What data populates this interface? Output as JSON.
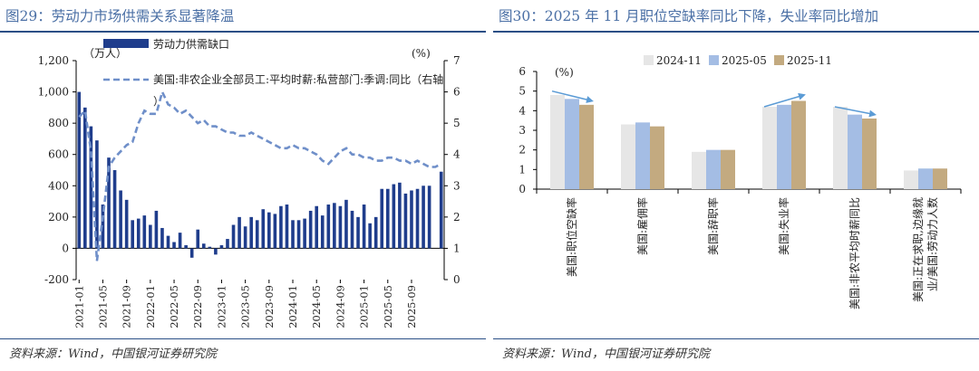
{
  "left": {
    "title": "图29：劳动力市场供需关系显著降温",
    "source": "资料来源：Wind，中国银河证券研究院",
    "colors": {
      "bar": "#1f3d8c",
      "line": "#6f8fc9"
    },
    "chart_data": {
      "type": "bar+line",
      "title": "劳动力市场供需关系显著降温",
      "left_axis_unit": "（万人）",
      "right_axis_unit": "(%)",
      "left_ylim": [
        -200,
        1200
      ],
      "left_yticks": [
        -200,
        0,
        200,
        400,
        600,
        800,
        1000,
        1200
      ],
      "left_ytick_labels": [
        "-200",
        "0",
        "200",
        "400",
        "600",
        "800",
        "1,000",
        "1,200"
      ],
      "right_ylim": [
        0,
        7
      ],
      "right_yticks": [
        0,
        1,
        2,
        3,
        4,
        5,
        6,
        7
      ],
      "xtick_labels": [
        "2021-01",
        "2021-05",
        "2021-09",
        "2022-01",
        "2022-05",
        "2022-09",
        "2023-01",
        "2023-05",
        "2023-09",
        "2024-01",
        "2024-05",
        "2024-09",
        "2025-01",
        "2025-05",
        "2025-09"
      ],
      "series": [
        {
          "name": "劳动力供需缺口",
          "type": "bar",
          "axis": "left",
          "values": [
            1000,
            900,
            780,
            690,
            280,
            580,
            500,
            370,
            310,
            180,
            190,
            210,
            150,
            240,
            130,
            80,
            40,
            100,
            20,
            -60,
            120,
            30,
            10,
            -40,
            20,
            60,
            150,
            200,
            140,
            200,
            180,
            250,
            230,
            220,
            270,
            280,
            180,
            180,
            190,
            240,
            270,
            210,
            280,
            290,
            270,
            310,
            240,
            200,
            280,
            160,
            200,
            380,
            380,
            410,
            420,
            350,
            370,
            380,
            400,
            400,
            null,
            490
          ]
        },
        {
          "name": "美国:非农企业全部员工:平均时薪:私营部门:季调:同比（右轴）",
          "type": "line",
          "axis": "right",
          "style": "dashed",
          "values": [
            5.2,
            5.4,
            4.1,
            0.6,
            2.0,
            3.6,
            3.9,
            4.1,
            4.3,
            4.4,
            5.0,
            5.4,
            5.3,
            5.3,
            6.0,
            5.6,
            5.5,
            5.3,
            5.4,
            5.2,
            5.0,
            5.1,
            4.9,
            4.9,
            4.8,
            4.7,
            4.7,
            4.6,
            4.6,
            4.7,
            4.6,
            4.5,
            4.4,
            4.3,
            4.2,
            4.2,
            4.3,
            4.2,
            4.2,
            4.1,
            4.0,
            3.8,
            3.7,
            3.9,
            4.1,
            4.2,
            4.0,
            4.0,
            3.9,
            3.9,
            3.8,
            3.8,
            3.9,
            3.9,
            3.8,
            3.8,
            3.7,
            3.8,
            3.7,
            3.6,
            3.6,
            3.7
          ]
        }
      ]
    }
  },
  "right": {
    "title": "图30：2025 年 11 月职位空缺率同比下降，失业率同比增加",
    "source": "资料来源：Wind，中国银河证券研究院",
    "colors": {
      "s1": "#e6e6e6",
      "s2": "#a4bde4",
      "s3": "#c3aa80",
      "arrow": "#5b9bd5"
    },
    "chart_data": {
      "type": "bar",
      "y_unit": "(%)",
      "ylim": [
        0,
        6
      ],
      "yticks": [
        0,
        1,
        2,
        3,
        4,
        5,
        6
      ],
      "categories": [
        "美国:职位空缺率",
        "美国:雇佣率",
        "美国:辞职率",
        "美国:失业率",
        "美国:非农平均时薪同比",
        "美国:正在求职,边缘就业/美国:劳动力人数"
      ],
      "category_lines": [
        [
          "美国:职位空缺率"
        ],
        [
          "美国:雇佣率"
        ],
        [
          "美国:辞职率"
        ],
        [
          "美国:失业率"
        ],
        [
          "美国:非农平均时薪同比"
        ],
        [
          "美国:正在求职,边缘就",
          "业/美国:劳动力人数"
        ]
      ],
      "series": [
        {
          "name": "2024-11",
          "values": [
            4.8,
            3.3,
            1.9,
            4.2,
            4.2,
            0.95
          ]
        },
        {
          "name": "2025-05",
          "values": [
            4.6,
            3.4,
            2.0,
            4.3,
            3.8,
            1.05
          ]
        },
        {
          "name": "2025-11",
          "values": [
            4.3,
            3.2,
            2.0,
            4.5,
            3.6,
            1.05
          ]
        }
      ],
      "arrows": [
        {
          "category": 0,
          "from_value": 5.0,
          "to_value": 4.5
        },
        {
          "category": 3,
          "from_value": 4.2,
          "to_value": 4.8
        },
        {
          "category": 4,
          "from_value": 4.2,
          "to_value": 3.8
        }
      ]
    }
  }
}
